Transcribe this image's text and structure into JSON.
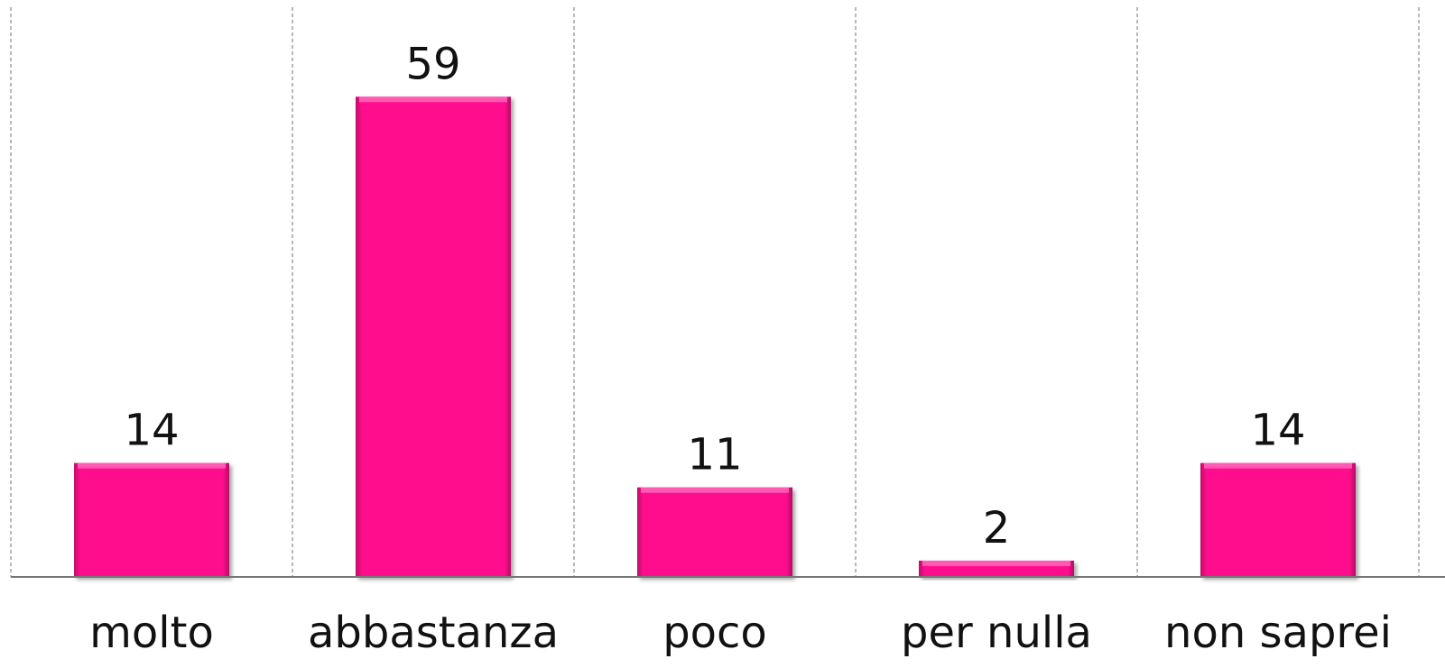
{
  "chart_data": {
    "type": "bar",
    "categories": [
      "molto",
      "abbastanza",
      "poco",
      "per nulla",
      "non saprei"
    ],
    "values": [
      14,
      59,
      11,
      2,
      14
    ],
    "color": "#ff0a8c",
    "ylim": [
      0,
      70
    ],
    "grid": true
  }
}
